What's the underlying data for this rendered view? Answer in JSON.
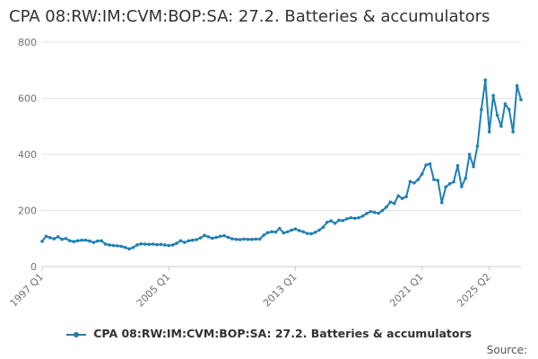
{
  "title": "CPA 08:RW:IM:CVM:BOP:SA: 27.2. Batteries & accumulators",
  "source_label": "Source:",
  "colors": {
    "series": "#1f7fb3",
    "grid": "#e3e3e3",
    "axis": "#cccccc"
  },
  "chart_data": {
    "type": "line",
    "title": "CPA 08:RW:IM:CVM:BOP:SA: 27.2. Batteries & accumulators",
    "xlabel": "",
    "ylabel": "",
    "x_start_label": "1997 Q1",
    "x_end_label": "2025 Q2",
    "xticks": [
      "1997 Q1",
      "2005 Q1",
      "2013 Q1",
      "2021 Q1",
      "2025 Q2"
    ],
    "ylim": [
      0,
      800
    ],
    "yticks": [
      0,
      200,
      400,
      600,
      800
    ],
    "grid": true,
    "legend": "bottom",
    "series": [
      {
        "name": "CPA 08:RW:IM:CVM:BOP:SA: 27.2. Batteries & accumulators",
        "values": [
          90,
          108,
          103,
          99,
          106,
          97,
          100,
          92,
          89,
          92,
          94,
          94,
          91,
          86,
          91,
          92,
          80,
          77,
          75,
          74,
          72,
          68,
          63,
          68,
          77,
          81,
          80,
          79,
          80,
          78,
          79,
          77,
          75,
          77,
          83,
          92,
          86,
          92,
          94,
          96,
          102,
          111,
          106,
          101,
          104,
          108,
          110,
          104,
          99,
          97,
          96,
          98,
          97,
          97,
          98,
          98,
          112,
          121,
          124,
          123,
          136,
          120,
          124,
          130,
          134,
          128,
          124,
          118,
          117,
          122,
          130,
          140,
          158,
          163,
          154,
          165,
          164,
          170,
          174,
          172,
          174,
          180,
          189,
          196,
          193,
          190,
          200,
          212,
          230,
          225,
          252,
          243,
          249,
          303,
          298,
          310,
          330,
          362,
          366,
          310,
          307,
          228,
          284,
          295,
          302,
          360,
          285,
          315,
          400,
          356,
          430,
          560,
          665,
          480,
          610,
          540,
          500,
          580,
          560,
          480,
          645,
          595
        ]
      }
    ]
  }
}
